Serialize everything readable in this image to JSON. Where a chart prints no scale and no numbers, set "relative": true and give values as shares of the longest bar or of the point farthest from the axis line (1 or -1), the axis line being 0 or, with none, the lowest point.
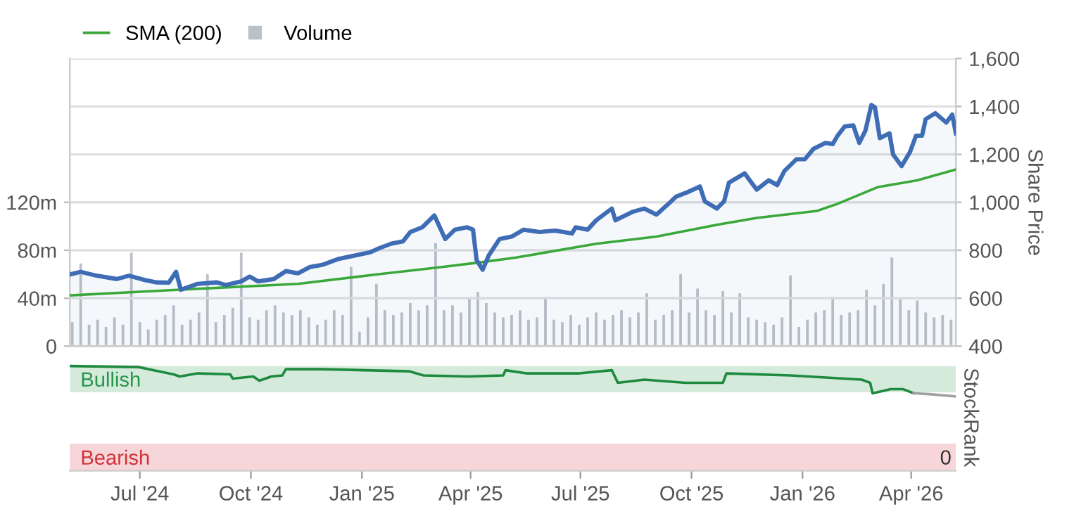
{
  "chart_data": [
    {
      "type": "line",
      "legend": "top left",
      "grid": "y",
      "tick_labels": "y",
      "y2label": "Share Price",
      "xlim": [
        "2024-05-04",
        "2026-05-08"
      ],
      "ylim": [
        0,
        240
      ],
      "yticks": [
        {
          "value": 0,
          "label": "0"
        },
        {
          "value": 40,
          "label": "40m"
        },
        {
          "value": 80,
          "label": "80m"
        },
        {
          "value": 120,
          "label": "120m"
        }
      ],
      "y2lim": [
        400,
        1600
      ],
      "y2ticks": [
        {
          "value": 400,
          "label": "400"
        },
        {
          "value": 600,
          "label": "600"
        },
        {
          "value": 800,
          "label": "800"
        },
        {
          "value": 1000,
          "label": "1,000"
        },
        {
          "value": 1200,
          "label": "1,200"
        },
        {
          "value": 1400,
          "label": "1,400"
        },
        {
          "value": 1600,
          "label": "1,600"
        }
      ],
      "series": [
        {
          "name": "SMA (200)",
          "type": "line",
          "axis": "y2",
          "color": "#3aa83a",
          "x": [
            "2024-05-05",
            "2024-08-01",
            "2024-11-09",
            "2025-01-15",
            "2025-03-06",
            "2025-04-08",
            "2025-05-08",
            "2025-07-14",
            "2025-09-02",
            "2025-10-22",
            "2025-11-24",
            "2026-01-13",
            "2026-01-30",
            "2026-03-04",
            "2026-04-06",
            "2026-05-08"
          ],
          "values": [
            612,
            635,
            660,
            700,
            729,
            749,
            769,
            827,
            857,
            906,
            935,
            964,
            994,
            1063,
            1092,
            1137
          ]
        },
        {
          "name": "Volume",
          "type": "bar",
          "axis": "y",
          "color": "#bcc0c8",
          "x": [
            "2024-05-06",
            "2024-05-13",
            "2024-05-20",
            "2024-05-27",
            "2024-06-03",
            "2024-06-10",
            "2024-06-17",
            "2024-06-24",
            "2024-07-01",
            "2024-07-08",
            "2024-07-15",
            "2024-07-22",
            "2024-07-29",
            "2024-08-05",
            "2024-08-12",
            "2024-08-19",
            "2024-08-26",
            "2024-09-02",
            "2024-09-09",
            "2024-09-16",
            "2024-09-23",
            "2024-09-30",
            "2024-10-07",
            "2024-10-14",
            "2024-10-21",
            "2024-10-28",
            "2024-11-04",
            "2024-11-11",
            "2024-11-18",
            "2024-11-25",
            "2024-12-02",
            "2024-12-09",
            "2024-12-16",
            "2024-12-23",
            "2024-12-30",
            "2025-01-06",
            "2025-01-13",
            "2025-01-20",
            "2025-01-27",
            "2025-02-03",
            "2025-02-10",
            "2025-02-17",
            "2025-02-24",
            "2025-03-03",
            "2025-03-10",
            "2025-03-17",
            "2025-03-24",
            "2025-03-31",
            "2025-04-07",
            "2025-04-14",
            "2025-04-21",
            "2025-04-28",
            "2025-05-05",
            "2025-05-12",
            "2025-05-19",
            "2025-05-26",
            "2025-06-02",
            "2025-06-09",
            "2025-06-16",
            "2025-06-23",
            "2025-06-30",
            "2025-07-07",
            "2025-07-14",
            "2025-07-21",
            "2025-07-28",
            "2025-08-04",
            "2025-08-11",
            "2025-08-18",
            "2025-08-25",
            "2025-09-01",
            "2025-09-08",
            "2025-09-15",
            "2025-09-22",
            "2025-09-29",
            "2025-10-06",
            "2025-10-13",
            "2025-10-20",
            "2025-10-27",
            "2025-11-03",
            "2025-11-10",
            "2025-11-17",
            "2025-11-24",
            "2025-12-01",
            "2025-12-08",
            "2025-12-15",
            "2025-12-22",
            "2025-12-29",
            "2026-01-05",
            "2026-01-12",
            "2026-01-19",
            "2026-01-26",
            "2026-02-02",
            "2026-02-09",
            "2026-02-16",
            "2026-02-23",
            "2026-03-02",
            "2026-03-09",
            "2026-03-16",
            "2026-03-23",
            "2026-03-30",
            "2026-04-06",
            "2026-04-13",
            "2026-04-20",
            "2026-04-27",
            "2026-05-04"
          ],
          "values": [
            20,
            69,
            18,
            22,
            16,
            24,
            18,
            78,
            20,
            14,
            22,
            26,
            34,
            18,
            22,
            28,
            60,
            20,
            26,
            32,
            78,
            24,
            22,
            30,
            34,
            28,
            26,
            30,
            24,
            18,
            22,
            30,
            26,
            66,
            12,
            24,
            52,
            30,
            26,
            28,
            36,
            30,
            34,
            86,
            30,
            34,
            28,
            40,
            45,
            36,
            28,
            24,
            26,
            30,
            22,
            24,
            41,
            22,
            20,
            26,
            18,
            24,
            28,
            22,
            26,
            30,
            24,
            28,
            44,
            22,
            26,
            30,
            60,
            28,
            48,
            30,
            26,
            46,
            28,
            44,
            24,
            22,
            20,
            18,
            24,
            59,
            16,
            22,
            28,
            30,
            41,
            26,
            28,
            30,
            47,
            34,
            52,
            74,
            40,
            30,
            38,
            28,
            24,
            26,
            22
          ]
        },
        {
          "type": "area",
          "axis": "y2",
          "color": "#3f6db5",
          "x": [
            "2024-05-05",
            "2024-05-13",
            "2024-05-26",
            "2024-06-12",
            "2024-06-22",
            "2024-07-05",
            "2024-07-15",
            "2024-07-25",
            "2024-07-31",
            "2024-08-04",
            "2024-08-18",
            "2024-09-03",
            "2024-09-10",
            "2024-09-23",
            "2024-09-30",
            "2024-10-07",
            "2024-10-20",
            "2024-10-30",
            "2024-11-09",
            "2024-11-19",
            "2024-11-29",
            "2024-12-12",
            "2024-12-26",
            "2025-01-08",
            "2025-01-15",
            "2025-01-25",
            "2025-02-04",
            "2025-02-10",
            "2025-02-20",
            "2025-03-02",
            "2025-03-11",
            "2025-03-19",
            "2025-03-29",
            "2025-04-03",
            "2025-04-06",
            "2025-04-11",
            "2025-04-16",
            "2025-04-25",
            "2025-05-05",
            "2025-05-15",
            "2025-05-28",
            "2025-06-10",
            "2025-06-24",
            "2025-06-27",
            "2025-07-07",
            "2025-07-14",
            "2025-07-27",
            "2025-07-30",
            "2025-08-13",
            "2025-08-23",
            "2025-09-02",
            "2025-09-12",
            "2025-09-18",
            "2025-09-28",
            "2025-10-08",
            "2025-10-12",
            "2025-10-22",
            "2025-10-28",
            "2025-11-01",
            "2025-11-14",
            "2025-11-24",
            "2025-12-04",
            "2025-12-11",
            "2025-12-17",
            "2025-12-27",
            "2026-01-03",
            "2026-01-10",
            "2026-01-20",
            "2026-01-26",
            "2026-01-30",
            "2026-02-05",
            "2026-02-12",
            "2026-02-17",
            "2026-02-22",
            "2026-02-27",
            "2026-03-02",
            "2026-03-06",
            "2026-03-14",
            "2026-03-17",
            "2026-03-24",
            "2026-03-31",
            "2026-04-05",
            "2026-04-10",
            "2026-04-13",
            "2026-04-21",
            "2026-04-30",
            "2026-05-05",
            "2026-05-08"
          ],
          "values": [
            700,
            710,
            694,
            680,
            694,
            676,
            666,
            665,
            710,
            635,
            660,
            666,
            655,
            670,
            690,
            670,
            680,
            713,
            704,
            730,
            739,
            763,
            778,
            792,
            808,
            827,
            837,
            876,
            896,
            945,
            847,
            886,
            896,
            886,
            759,
            719,
            778,
            847,
            857,
            886,
            876,
            882,
            870,
            896,
            886,
            925,
            974,
            925,
            960,
            974,
            949,
            994,
            1023,
            1043,
            1066,
            1004,
            974,
            1004,
            1082,
            1121,
            1053,
            1092,
            1072,
            1131,
            1180,
            1180,
            1223,
            1248,
            1243,
            1278,
            1317,
            1321,
            1248,
            1298,
            1406,
            1396,
            1268,
            1288,
            1200,
            1151,
            1210,
            1278,
            1278,
            1347,
            1372,
            1333,
            1366,
            1288
          ]
        }
      ]
    },
    {
      "type": "line",
      "relative": true,
      "tick_labels": "x",
      "ylabel": "StockRank",
      "xlim": [
        "2024-05-04",
        "2026-05-08"
      ],
      "xticks": [
        {
          "value": "2024-07-01",
          "label": "Jul '24"
        },
        {
          "value": "2024-10-01",
          "label": "Oct '24"
        },
        {
          "value": "2025-01-01",
          "label": "Jan '25"
        },
        {
          "value": "2025-04-01",
          "label": "Apr '25"
        },
        {
          "value": "2025-07-01",
          "label": "Jul '25"
        },
        {
          "value": "2025-10-01",
          "label": "Oct '25"
        },
        {
          "value": "2026-01-01",
          "label": "Jan '26"
        },
        {
          "value": "2026-04-01",
          "label": "Apr '26"
        }
      ],
      "bands": [
        {
          "axis": "y",
          "from": 0.75,
          "to": 1.0,
          "label": "Bullish",
          "color": "#d4eadb"
        },
        {
          "axis": "y",
          "from": 0,
          "to": 0.26,
          "label": "Bearish",
          "color": "#f6d6d8"
        }
      ],
      "annotations": [
        "0"
      ],
      "series": [
        {
          "color": "#1e8a3e",
          "x": [
            "2024-05-04",
            "2024-06-30",
            "2024-07-12",
            "2024-07-29",
            "2024-08-03",
            "2024-08-18",
            "2024-09-14",
            "2024-09-16",
            "2024-10-03",
            "2024-10-08",
            "2024-10-18",
            "2024-10-27",
            "2024-10-30",
            "2024-11-28",
            "2025-02-09",
            "2025-02-21",
            "2025-03-30",
            "2025-04-28",
            "2025-04-30",
            "2025-05-17",
            "2025-06-30",
            "2025-07-27",
            "2025-08-01",
            "2025-08-23",
            "2025-09-26",
            "2025-10-27",
            "2025-10-30",
            "2025-12-22",
            "2026-02-19",
            "2026-02-26",
            "2026-02-28",
            "2026-03-15",
            "2026-03-25",
            "2026-04-03"
          ],
          "values": [
            1.0,
            0.99,
            0.96,
            0.92,
            0.9,
            0.93,
            0.92,
            0.88,
            0.9,
            0.86,
            0.9,
            0.91,
            0.97,
            0.97,
            0.95,
            0.91,
            0.9,
            0.91,
            0.96,
            0.93,
            0.93,
            0.96,
            0.84,
            0.87,
            0.84,
            0.84,
            0.93,
            0.91,
            0.87,
            0.84,
            0.74,
            0.78,
            0.78,
            0.74
          ]
        },
        {
          "color": "#a0a0a0",
          "x": [
            "2026-04-03",
            "2026-04-18",
            "2026-05-08"
          ],
          "values": [
            0.74,
            0.73,
            0.71
          ]
        }
      ]
    }
  ]
}
